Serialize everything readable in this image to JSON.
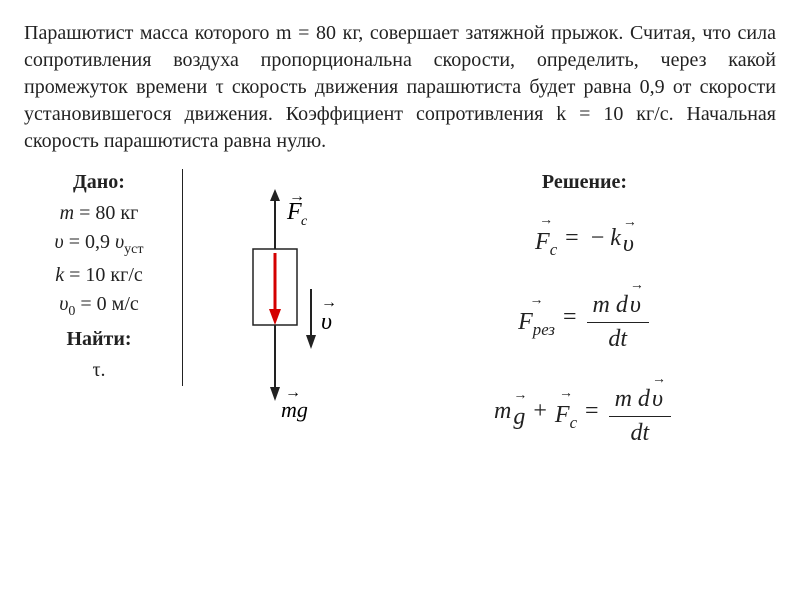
{
  "problem": {
    "text": "Парашютист масса которого m = 80 кг, совершает затяжной прыжок. Считая, что сила сопротивления воздуха пропорциональна скорости, определить, через какой промежуток времени τ скорость движения парашютиста будет равна 0,9 от скорости установившегося движения. Коэффициент сопротивления k = 10 кг/с. Начальная скорость парашютиста равна нулю."
  },
  "given": {
    "header": "Дано:",
    "rows": [
      {
        "html": "<span class='italic'>m</span> = 80 кг"
      },
      {
        "html": "<span class='italic'>υ</span> = 0,9 <span class='italic'>υ</span><span class='sub'>уст</span>"
      },
      {
        "html": "<span class='italic'>k</span> = 10 кг/с"
      },
      {
        "html": "<span class='italic'>υ</span><span class='sub'>0</span> = 0 м/с"
      }
    ],
    "find_header": "Найти:",
    "find": "τ."
  },
  "diagram": {
    "labels": {
      "Fc": "F",
      "Fc_sub": "c",
      "v": "υ",
      "mg": "mg"
    },
    "colors": {
      "stroke": "#222222",
      "red": "#d40000",
      "bg": "#ffffff"
    }
  },
  "solution": {
    "header": "Решение:"
  }
}
